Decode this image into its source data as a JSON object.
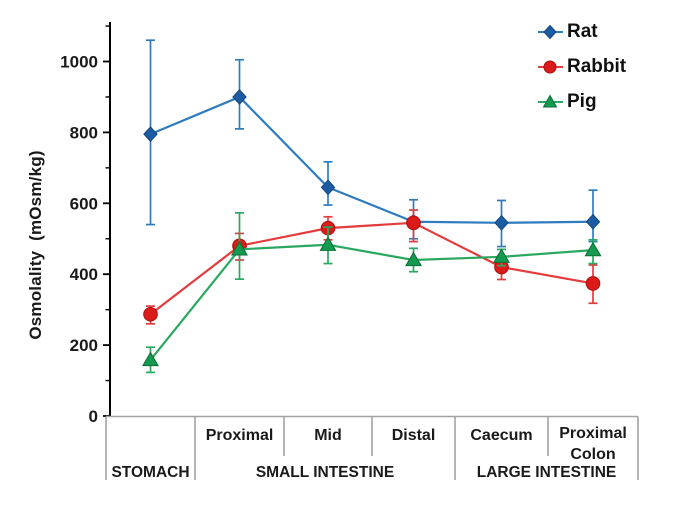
{
  "colors": {
    "background": "#ffffff",
    "text": "#1a1a1a",
    "axis": "#000000",
    "table_line": "#a3a3a3"
  },
  "y_axis": {
    "title": "Osmolality  (mOsm/kg)",
    "tick_labels": [
      "0",
      "200",
      "400",
      "600",
      "800",
      "1000"
    ],
    "major_ticks": [
      0,
      200,
      400,
      600,
      800,
      1000
    ],
    "minor_ticks": [
      100,
      300,
      500,
      700,
      900,
      1100
    ],
    "max": 1100
  },
  "x_axis": {
    "cell_labels": [
      "Proximal",
      "Mid",
      "Distal",
      "Caecum",
      "Proximal",
      "Colon"
    ],
    "group_labels": [
      "STOMACH",
      "SMALL INTESTINE",
      "LARGE INTESTINE"
    ]
  },
  "legend": {
    "items": [
      "Rat",
      "Rabbit",
      "Pig"
    ]
  },
  "chart_data": {
    "type": "line",
    "title": "",
    "xlabel": "",
    "ylabel": "Osmolality (mOsm/kg)",
    "ylim": [
      0,
      1100
    ],
    "grid": false,
    "legend_position": "top-right",
    "categories": [
      "Stomach",
      "Small intestine Proximal",
      "Small intestine Mid",
      "Small intestine Distal",
      "Caecum",
      "Proximal Colon"
    ],
    "category_groups": [
      "STOMACH",
      "SMALL INTESTINE",
      "LARGE INTESTINE"
    ],
    "series": [
      {
        "name": "Rat",
        "marker": "diamond",
        "marker_color": "#1b5ca2",
        "edge_color": "#14477e",
        "line_color": "#2e7cbf",
        "values": [
          795,
          900,
          645,
          548,
          545,
          548
        ],
        "err_high": [
          1060,
          1005,
          717,
          610,
          608,
          637
        ],
        "err_low": [
          540,
          810,
          595,
          500,
          478,
          492
        ]
      },
      {
        "name": "Rabbit",
        "marker": "circle",
        "marker_color": "#dd1a1a",
        "edge_color": "#a90f0f",
        "line_color": "#e43c3c",
        "values": [
          287,
          480,
          530,
          545,
          420,
          374
        ],
        "err_high": [
          310,
          515,
          562,
          581,
          452,
          426
        ],
        "err_low": [
          260,
          440,
          497,
          492,
          385,
          318
        ]
      },
      {
        "name": "Pig",
        "marker": "triangle",
        "marker_color": "#149a4e",
        "edge_color": "#0c6e36",
        "line_color": "#2aa85f",
        "values": [
          158,
          470,
          483,
          440,
          449,
          468
        ],
        "err_high": [
          194,
          573,
          533,
          473,
          470,
          497
        ],
        "err_low": [
          123,
          386,
          430,
          407,
          424,
          430
        ]
      }
    ]
  }
}
